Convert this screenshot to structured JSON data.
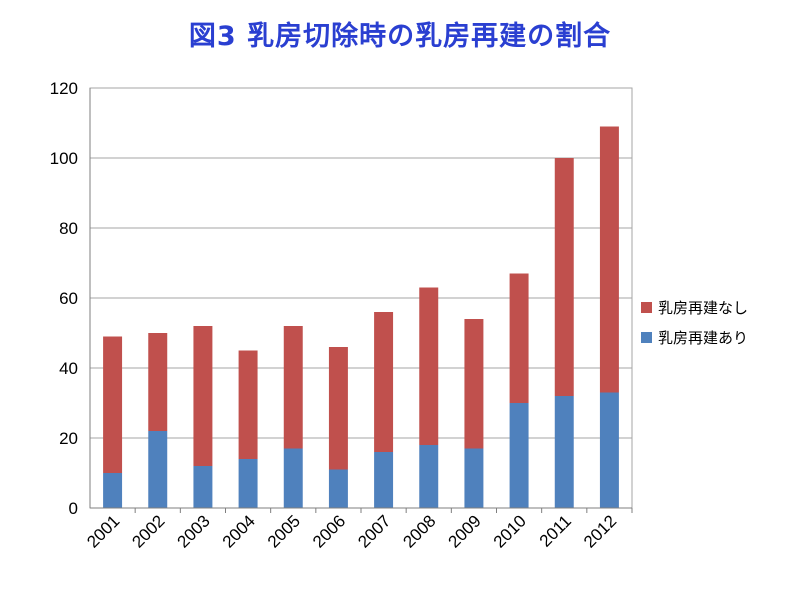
{
  "chart_data": {
    "type": "bar",
    "stacked": true,
    "title": "図3 乳房切除時の乳房再建の割合",
    "xlabel": "",
    "ylabel": "",
    "ylim": [
      0,
      120
    ],
    "yticks": [
      "0",
      "20",
      "40",
      "60",
      "80",
      "100",
      "120"
    ],
    "grid": true,
    "legend_position": "right",
    "categories": [
      "2001",
      "2002",
      "2003",
      "2004",
      "2005",
      "2006",
      "2007",
      "2008",
      "2009",
      "2010",
      "2011",
      "2012"
    ],
    "series": [
      {
        "name": "乳房再建あり",
        "color": "#4f81bd",
        "values": [
          10,
          22,
          12,
          14,
          17,
          11,
          16,
          18,
          17,
          30,
          32,
          33
        ]
      },
      {
        "name": "乳房再建なし",
        "color": "#c0504d",
        "values": [
          39,
          28,
          40,
          31,
          35,
          35,
          40,
          45,
          37,
          37,
          68,
          76
        ]
      }
    ]
  }
}
